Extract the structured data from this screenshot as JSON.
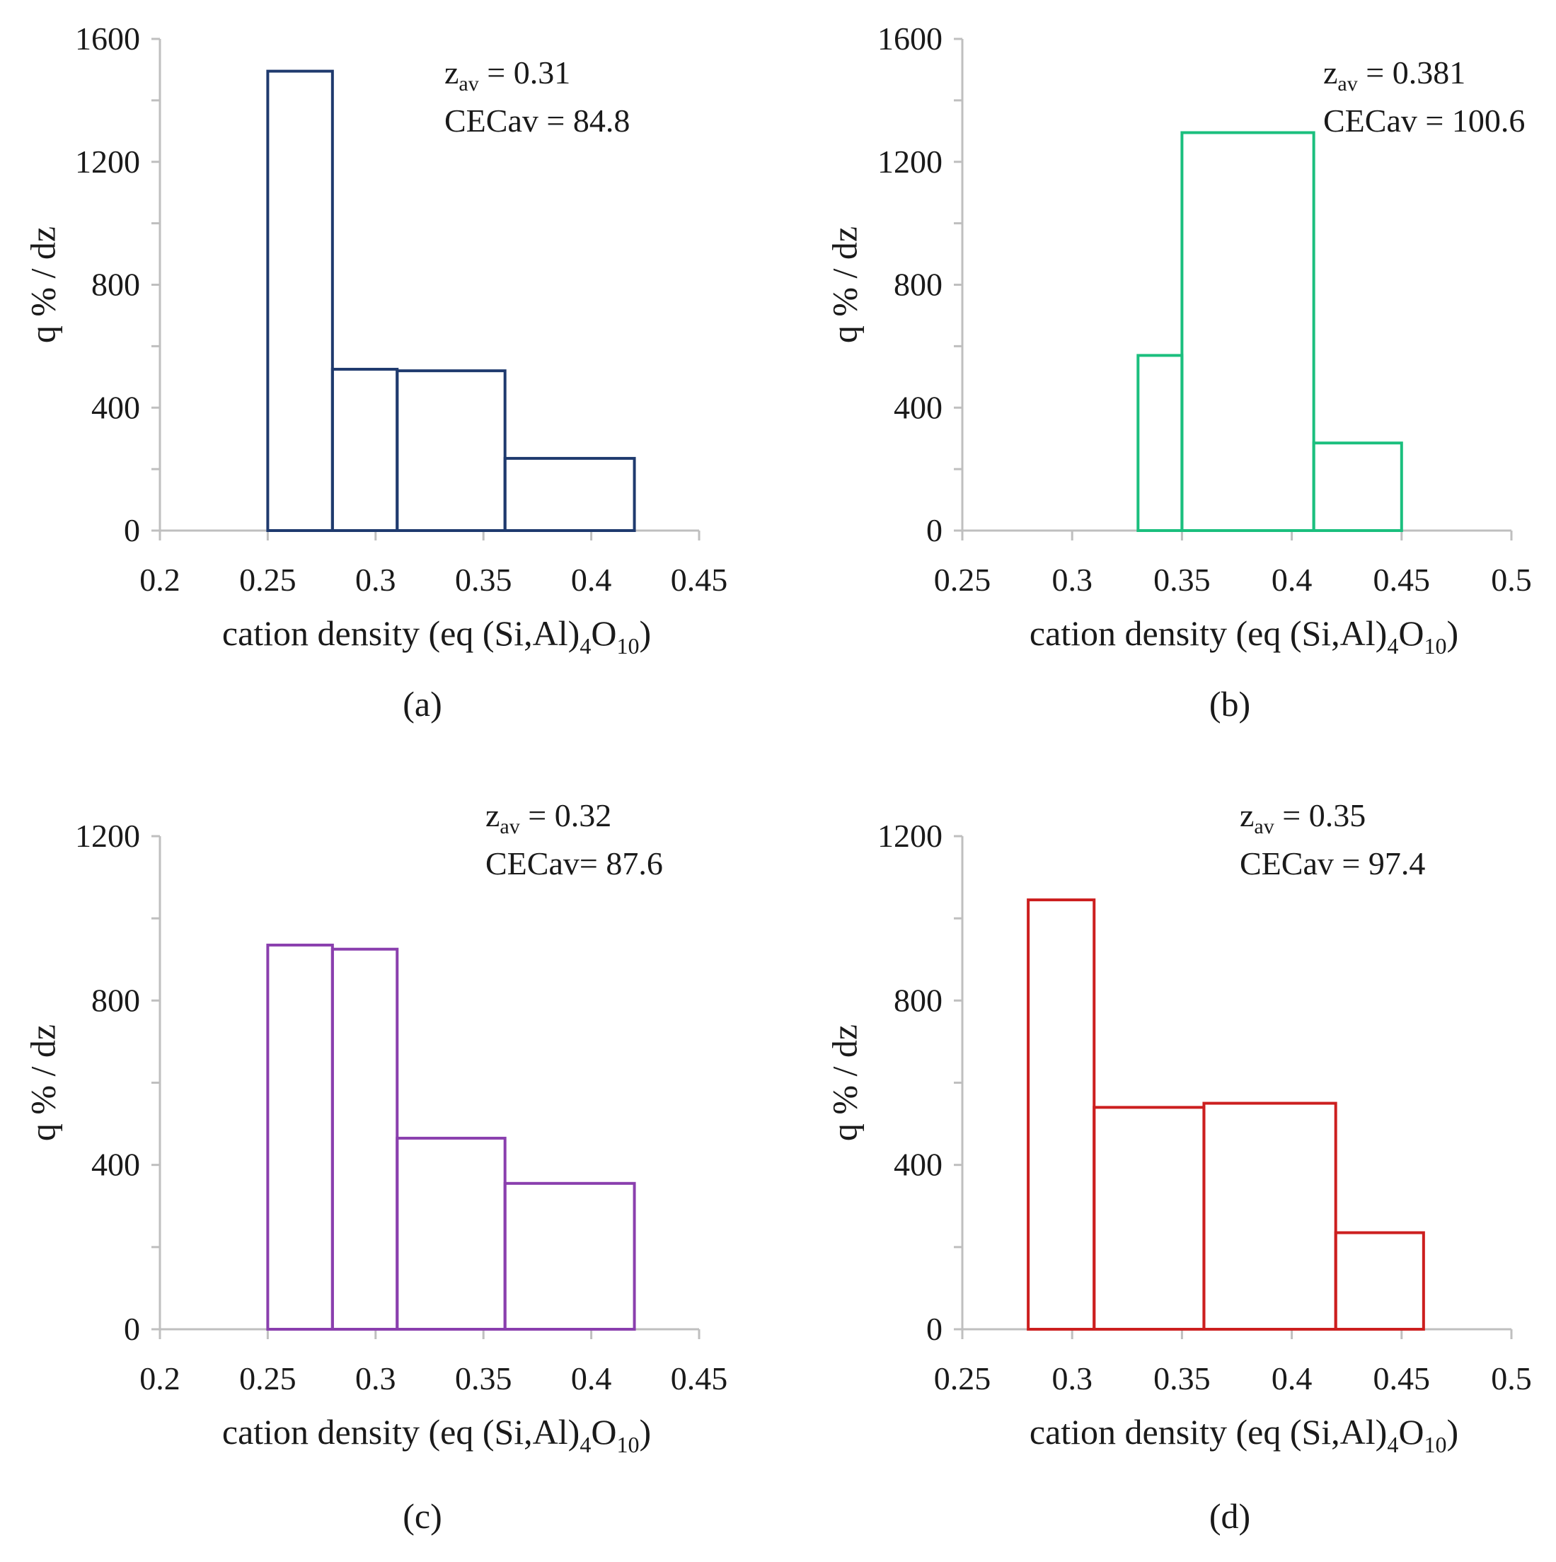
{
  "chart_data": [
    {
      "type": "histogram",
      "panel_label": "(a)",
      "color": "#1f3a6e",
      "ylabel": "q % / dz",
      "xlabel_main": "cation density (eq (Si,Al)",
      "xlabel_sub1": "4",
      "xlabel_mid": "O",
      "xlabel_sub2": "10",
      "xlabel_end": ")",
      "xlim": [
        0.2,
        0.45
      ],
      "ylim": [
        0,
        1600
      ],
      "xticks": [
        "0.2",
        "0.25",
        "0.3",
        "0.35",
        "0.4",
        "0.45"
      ],
      "yticks": [
        "0",
        "400",
        "800",
        "1200",
        "1600"
      ],
      "annotation": {
        "z_pre": "z",
        "z_sub": "av",
        "z_value": "= 0.31",
        "cec": "CECav = 84.8"
      },
      "bins": [
        {
          "x0": 0.25,
          "x1": 0.28,
          "value": 1495
        },
        {
          "x0": 0.28,
          "x1": 0.31,
          "value": 525
        },
        {
          "x0": 0.31,
          "x1": 0.36,
          "value": 520
        },
        {
          "x0": 0.36,
          "x1": 0.42,
          "value": 235
        }
      ]
    },
    {
      "type": "histogram",
      "panel_label": "(b)",
      "color": "#1bbf7e",
      "ylabel": "q % / dz",
      "xlabel_main": "cation density (eq (Si,Al)",
      "xlabel_sub1": "4",
      "xlabel_mid": "O",
      "xlabel_sub2": "10",
      "xlabel_end": ")",
      "xlim": [
        0.25,
        0.5
      ],
      "ylim": [
        0,
        1600
      ],
      "xticks": [
        "0.25",
        "0.3",
        "0.35",
        "0.4",
        "0.45",
        "0.5"
      ],
      "yticks": [
        "0",
        "400",
        "800",
        "1200",
        "1600"
      ],
      "annotation": {
        "z_pre": "z",
        "z_sub": "av",
        "z_value": "= 0.381",
        "cec": "CECav = 100.6"
      },
      "bins": [
        {
          "x0": 0.33,
          "x1": 0.35,
          "value": 570
        },
        {
          "x0": 0.35,
          "x1": 0.41,
          "value": 1295
        },
        {
          "x0": 0.41,
          "x1": 0.45,
          "value": 285
        }
      ]
    },
    {
      "type": "histogram",
      "panel_label": "(c)",
      "color": "#8a3fae",
      "ylabel": "q % / dz",
      "xlabel_main": "cation density (eq (Si,Al)",
      "xlabel_sub1": "4",
      "xlabel_mid": "O",
      "xlabel_sub2": "10",
      "xlabel_end": ")",
      "xlim": [
        0.2,
        0.45
      ],
      "ylim": [
        0,
        1200
      ],
      "xticks": [
        "0.2",
        "0.25",
        "0.3",
        "0.35",
        "0.4",
        "0.45"
      ],
      "yticks": [
        "0",
        "400",
        "800",
        "1200"
      ],
      "annotation": {
        "z_pre": "z",
        "z_sub": "av",
        "z_value": "= 0.32",
        "cec": "CECav= 87.6"
      },
      "bins": [
        {
          "x0": 0.25,
          "x1": 0.28,
          "value": 935
        },
        {
          "x0": 0.28,
          "x1": 0.31,
          "value": 925
        },
        {
          "x0": 0.31,
          "x1": 0.36,
          "value": 465
        },
        {
          "x0": 0.36,
          "x1": 0.42,
          "value": 355
        }
      ]
    },
    {
      "type": "histogram",
      "panel_label": "(d)",
      "color": "#cc1f1f",
      "ylabel": "q % / dz",
      "xlabel_main": "cation density (eq (Si,Al)",
      "xlabel_sub1": "4",
      "xlabel_mid": "O",
      "xlabel_sub2": "10",
      "xlabel_end": ")",
      "xlim": [
        0.25,
        0.5
      ],
      "ylim": [
        0,
        1200
      ],
      "xticks": [
        "0.25",
        "0.3",
        "0.35",
        "0.4",
        "0.45",
        "0.5"
      ],
      "yticks": [
        "0",
        "400",
        "800",
        "1200"
      ],
      "annotation": {
        "z_pre": "z",
        "z_sub": "av",
        "z_value": "=  0.35",
        "cec": "CECav = 97.4"
      },
      "bins": [
        {
          "x0": 0.28,
          "x1": 0.31,
          "value": 1045
        },
        {
          "x0": 0.31,
          "x1": 0.36,
          "value": 540
        },
        {
          "x0": 0.36,
          "x1": 0.42,
          "value": 550
        },
        {
          "x0": 0.42,
          "x1": 0.46,
          "value": 235
        }
      ]
    }
  ]
}
